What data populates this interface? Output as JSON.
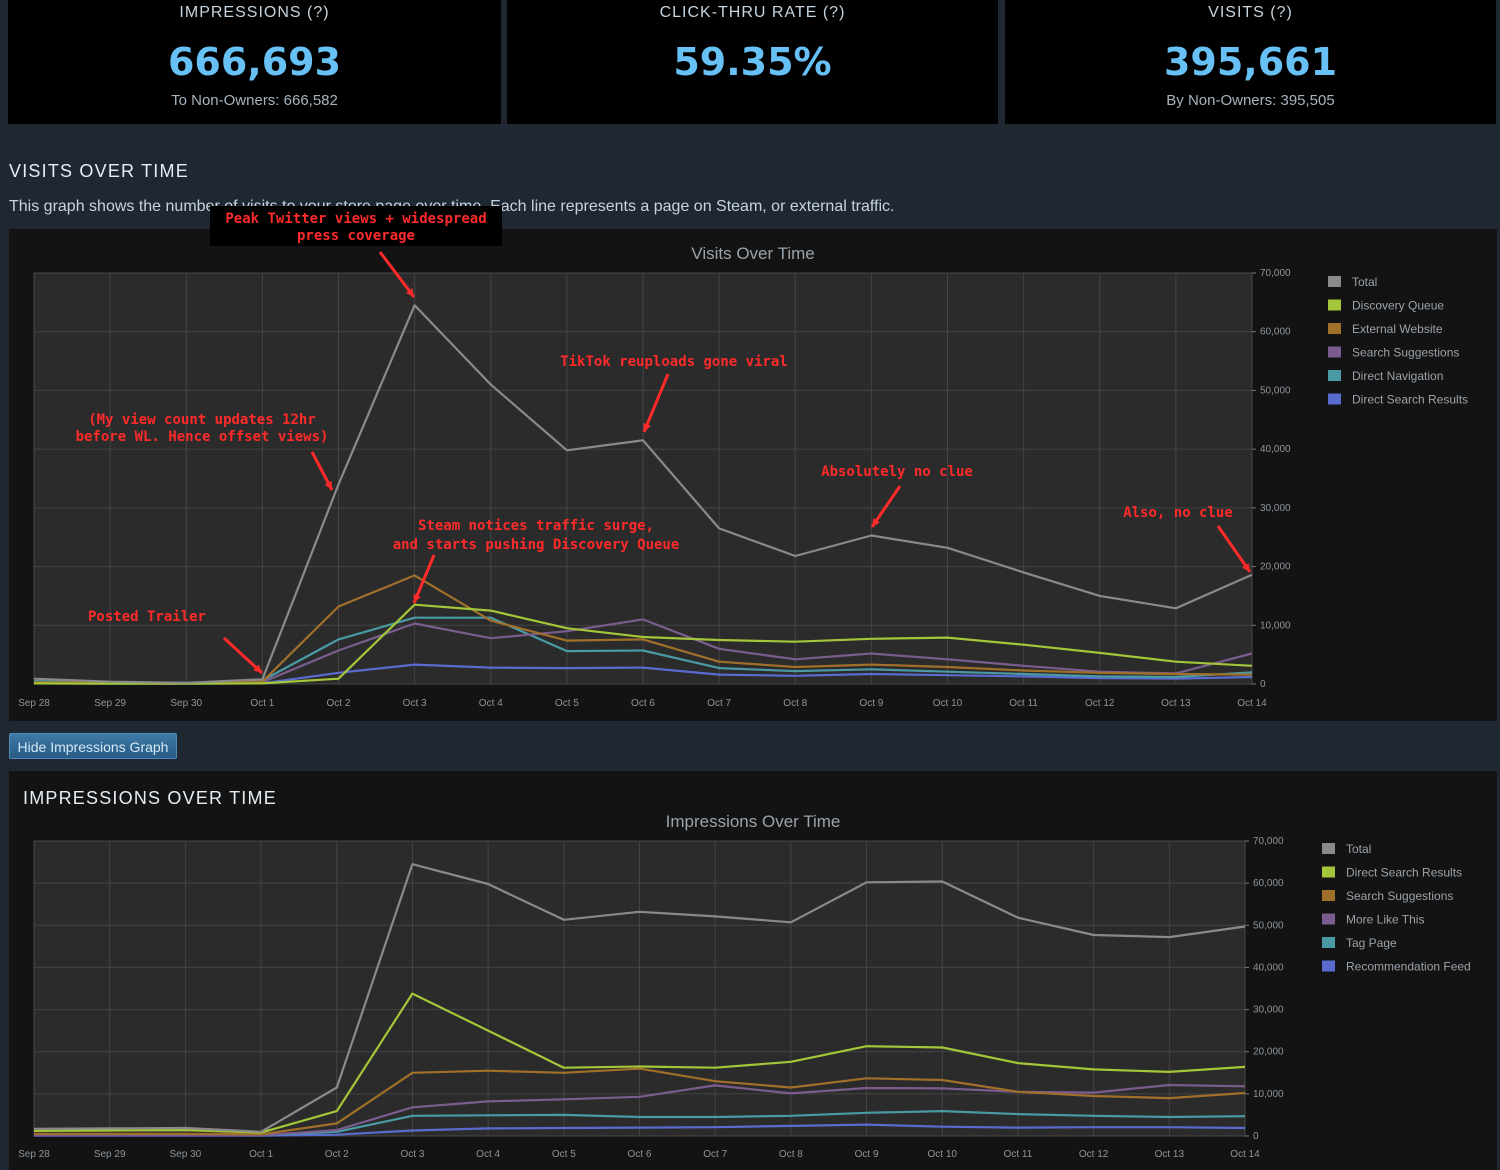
{
  "kpis": [
    {
      "title": "IMPRESSIONS (?)",
      "value": "666,693",
      "sub": "To Non-Owners: 666,582"
    },
    {
      "title": "CLICK-THRU RATE (?)",
      "value": "59.35%",
      "sub": ""
    },
    {
      "title": "VISITS (?)",
      "value": "395,661",
      "sub": "By Non-Owners: 395,505"
    }
  ],
  "visits_section": {
    "title": "VISITS OVER TIME",
    "description": "This graph shows the number of visits to your store page over time. Each line represents a page on Steam, or external traffic."
  },
  "hide_button": "Hide Impressions Graph",
  "impressions_section": {
    "title": "IMPRESSIONS OVER TIME"
  },
  "colors": {
    "Total": "#8a8a8a",
    "Discovery Queue": "#a4c639",
    "External Website": "#a0702a",
    "Search Suggestions": "#7b5c8e",
    "Direct Navigation": "#4a9aa6",
    "Direct Search Results": "#5a6bd0",
    "Impr Direct Search Results": "#a4c639",
    "Impr Search Suggestions": "#a0702a",
    "More Like This": "#7b5c8e",
    "Tag Page": "#4a9aa6",
    "Recommendation Feed": "#5a6bd0",
    "annotation": "#ff2a2a"
  },
  "annotations": [
    {
      "lines": [
        "Peak Twitter views + widespread",
        "press coverage"
      ]
    },
    {
      "lines": [
        "TikTok reuploads gone viral"
      ]
    },
    {
      "lines": [
        "(My view count updates 12hr",
        "before WL. Hence offset views)"
      ]
    },
    {
      "lines": [
        "Absolutely no clue"
      ]
    },
    {
      "lines": [
        "Also, no clue"
      ]
    },
    {
      "lines": [
        "Steam notices traffic surge,",
        "and starts pushing Discovery Queue"
      ]
    },
    {
      "lines": [
        "Posted Trailer"
      ]
    }
  ],
  "chart_data": [
    {
      "type": "line",
      "title": "Visits Over Time",
      "x": [
        "Sep 28",
        "Sep 29",
        "Sep 30",
        "Oct 1",
        "Oct 2",
        "Oct 3",
        "Oct 4",
        "Oct 5",
        "Oct 6",
        "Oct 7",
        "Oct 8",
        "Oct 9",
        "Oct 10",
        "Oct 11",
        "Oct 12",
        "Oct 13",
        "Oct 14"
      ],
      "ylim": [
        0,
        70000
      ],
      "yticks": [
        "0",
        "10,000",
        "20,000",
        "30,000",
        "40,000",
        "50,000",
        "60,000",
        "70,000"
      ],
      "grid": true,
      "legend": "right",
      "series": [
        {
          "name": "Total",
          "values": [
            900,
            400,
            200,
            800,
            34000,
            64500,
            51000,
            39800,
            41500,
            26500,
            21800,
            25300,
            23200,
            19000,
            15000,
            12900,
            18600
          ]
        },
        {
          "name": "Discovery Queue",
          "values": [
            100,
            50,
            50,
            100,
            900,
            13500,
            12500,
            9500,
            8000,
            7500,
            7200,
            7700,
            7900,
            6700,
            5300,
            3800,
            3100
          ]
        },
        {
          "name": "External Website",
          "values": [
            300,
            200,
            100,
            400,
            13200,
            18500,
            10800,
            7400,
            7600,
            3800,
            2900,
            3300,
            2900,
            2300,
            1900,
            1700,
            1600
          ]
        },
        {
          "name": "Search Suggestions",
          "values": [
            200,
            100,
            100,
            300,
            5700,
            10300,
            7800,
            9000,
            11000,
            6000,
            4200,
            5200,
            4200,
            3100,
            2100,
            1800,
            5200
          ]
        },
        {
          "name": "Direct Navigation",
          "values": [
            500,
            300,
            200,
            600,
            7600,
            11300,
            11300,
            5600,
            5700,
            2700,
            2200,
            2500,
            2100,
            1700,
            1300,
            1200,
            2000
          ]
        },
        {
          "name": "Direct Search Results",
          "values": [
            100,
            50,
            50,
            100,
            1900,
            3300,
            2800,
            2700,
            2800,
            1600,
            1400,
            1700,
            1500,
            1300,
            1000,
            900,
            1200
          ]
        }
      ]
    },
    {
      "type": "line",
      "title": "Impressions Over Time",
      "x": [
        "Sep 28",
        "Sep 29",
        "Sep 30",
        "Oct 1",
        "Oct 2",
        "Oct 3",
        "Oct 4",
        "Oct 5",
        "Oct 6",
        "Oct 7",
        "Oct 8",
        "Oct 9",
        "Oct 10",
        "Oct 11",
        "Oct 12",
        "Oct 13",
        "Oct 14"
      ],
      "ylim": [
        0,
        70000
      ],
      "yticks": [
        "0",
        "10,000",
        "20,000",
        "30,000",
        "40,000",
        "50,000",
        "60,000",
        "70,000"
      ],
      "grid": true,
      "legend": "right",
      "series": [
        {
          "name": "Total",
          "values": [
            1700,
            1800,
            1900,
            1000,
            11500,
            64500,
            59800,
            51300,
            53200,
            52100,
            50700,
            60200,
            60400,
            51800,
            47700,
            47200,
            49700
          ]
        },
        {
          "name": "Direct Search Results",
          "values": [
            1200,
            1300,
            1400,
            800,
            5900,
            33800,
            25000,
            16200,
            16500,
            16200,
            17600,
            21300,
            21000,
            17300,
            15800,
            15200,
            16400
          ]
        },
        {
          "name": "Search Suggestions",
          "values": [
            500,
            500,
            500,
            400,
            3000,
            15000,
            15500,
            15000,
            16000,
            13000,
            11500,
            13700,
            13300,
            10500,
            9500,
            9000,
            10200
          ]
        },
        {
          "name": "More Like This",
          "values": [
            200,
            200,
            200,
            200,
            1400,
            6800,
            8200,
            8700,
            9300,
            12000,
            10100,
            11400,
            11300,
            10500,
            10300,
            12100,
            11800
          ]
        },
        {
          "name": "Tag Page",
          "values": [
            300,
            300,
            300,
            200,
            1000,
            4800,
            4900,
            5000,
            4500,
            4500,
            4800,
            5500,
            5900,
            5200,
            4800,
            4500,
            4700
          ]
        },
        {
          "name": "Recommendation Feed",
          "values": [
            100,
            100,
            100,
            100,
            300,
            1300,
            1800,
            1900,
            2000,
            2100,
            2400,
            2700,
            2200,
            2000,
            2100,
            2100,
            1900
          ]
        }
      ]
    }
  ]
}
